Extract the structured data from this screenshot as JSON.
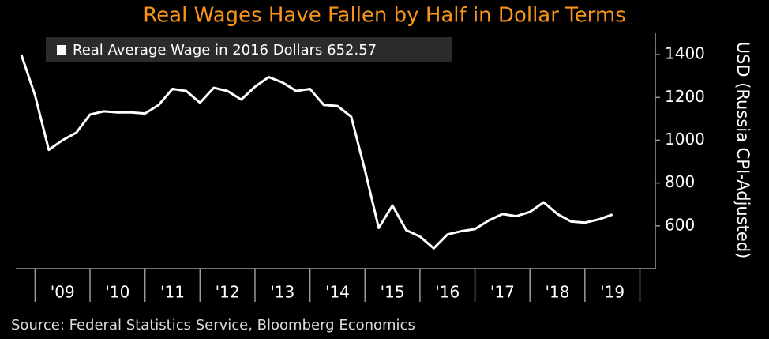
{
  "chart_data": {
    "type": "line",
    "title": "Real Wages Have Fallen by Half in Dollar Terms",
    "ylabel": "USD (Russia CPI-Adjusted)",
    "source": "Source: Federal Statistics Service, Bloomberg Economics",
    "x": [
      2008.75,
      2009.0,
      2009.25,
      2009.5,
      2009.75,
      2010.0,
      2010.25,
      2010.5,
      2010.75,
      2011.0,
      2011.25,
      2011.5,
      2011.75,
      2012.0,
      2012.25,
      2012.5,
      2012.75,
      2013.0,
      2013.25,
      2013.5,
      2013.75,
      2014.0,
      2014.25,
      2014.5,
      2014.75,
      2015.0,
      2015.25,
      2015.5,
      2015.75,
      2016.0,
      2016.25,
      2016.5,
      2016.75,
      2017.0,
      2017.25,
      2017.5,
      2017.75,
      2018.0,
      2018.25,
      2018.5,
      2018.75,
      2019.0,
      2019.25,
      2019.5
    ],
    "series": [
      {
        "name": "Real Average Wage in 2016 Dollars",
        "color": "#ffffff",
        "values": [
          1400,
          1210,
          955,
          1000,
          1035,
          1120,
          1135,
          1130,
          1130,
          1125,
          1165,
          1240,
          1230,
          1175,
          1245,
          1230,
          1190,
          1250,
          1295,
          1270,
          1230,
          1240,
          1165,
          1160,
          1110,
          860,
          590,
          695,
          580,
          550,
          495,
          560,
          575,
          585,
          625,
          655,
          645,
          665,
          710,
          655,
          620,
          615,
          630,
          652.57
        ]
      }
    ],
    "xlim": [
      2008.65,
      2020.28
    ],
    "xticks": [
      {
        "value": 2009.5,
        "label": "'09"
      },
      {
        "value": 2010.5,
        "label": "'10"
      },
      {
        "value": 2011.5,
        "label": "'11"
      },
      {
        "value": 2012.5,
        "label": "'12"
      },
      {
        "value": 2013.5,
        "label": "'13"
      },
      {
        "value": 2014.5,
        "label": "'14"
      },
      {
        "value": 2015.5,
        "label": "'15"
      },
      {
        "value": 2016.5,
        "label": "'16"
      },
      {
        "value": 2017.5,
        "label": "'17"
      },
      {
        "value": 2018.5,
        "label": "'18"
      },
      {
        "value": 2019.5,
        "label": "'19"
      }
    ],
    "xminor_ticks": [
      2009,
      2010,
      2011,
      2012,
      2013,
      2014,
      2015,
      2016,
      2017,
      2018,
      2019,
      2020
    ],
    "ylim": [
      400,
      1500
    ],
    "yticks": [
      600,
      800,
      1000,
      1200,
      1400
    ],
    "legend": "upper left"
  }
}
